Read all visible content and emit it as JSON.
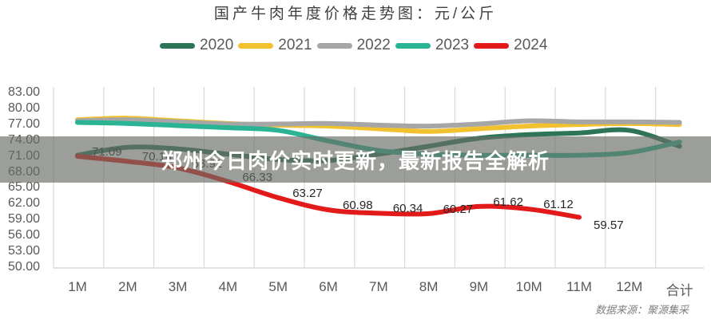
{
  "chart": {
    "title": "国产牛肉年度价格走势图：元/公斤",
    "source": "数据来源：聚源集采",
    "legend": [
      {
        "label": "2020",
        "color": "#2e7558"
      },
      {
        "label": "2021",
        "color": "#f2c12e"
      },
      {
        "label": "2022",
        "color": "#a6a6a6"
      },
      {
        "label": "2023",
        "color": "#2bb494"
      },
      {
        "label": "2024",
        "color": "#e31a1a"
      }
    ],
    "yticks": [
      "83.00",
      "80.00",
      "77.00",
      "74.00",
      "71.00",
      "68.00",
      "65.00",
      "62.00",
      "59.00",
      "56.00",
      "53.00",
      "50.00"
    ],
    "xticks": [
      "1M",
      "2M",
      "3M",
      "4M",
      "5M",
      "6M",
      "7M",
      "8M",
      "9M",
      "10M",
      "11M",
      "12M",
      "合计"
    ]
  },
  "banner": {
    "headline": "郑州今日肉价实时更新，最新报告全解析"
  },
  "chart_data": {
    "type": "line",
    "title": "国产牛肉年度价格走势图：元/公斤",
    "xlabel": "",
    "ylabel": "元/公斤",
    "ylim": [
      50,
      83
    ],
    "grid": {
      "vertical": true,
      "horizontal": false
    },
    "legend_position": "top",
    "categories": [
      "1M",
      "2M",
      "3M",
      "4M",
      "5M",
      "6M",
      "7M",
      "8M",
      "9M",
      "10M",
      "11M",
      "12M",
      "合计"
    ],
    "series": [
      {
        "name": "2020",
        "color": "#2e7558",
        "values": [
          71.3,
          72.8,
          72.5,
          71.5,
          70.5,
          70.3,
          71.5,
          73.0,
          74.5,
          75.2,
          75.5,
          76.0,
          73.0
        ]
      },
      {
        "name": "2021",
        "color": "#f2c12e",
        "values": [
          78.0,
          78.3,
          77.8,
          77.3,
          77.0,
          76.8,
          76.3,
          75.8,
          76.3,
          76.8,
          77.1,
          77.3,
          77.1
        ]
      },
      {
        "name": "2022",
        "color": "#a6a6a6",
        "values": [
          77.8,
          78.0,
          77.6,
          77.2,
          77.2,
          77.3,
          77.0,
          76.8,
          77.2,
          77.8,
          77.6,
          77.6,
          77.5
        ]
      },
      {
        "name": "2023",
        "color": "#2bb494",
        "values": [
          77.5,
          77.3,
          76.9,
          76.5,
          76.0,
          74.0,
          72.2,
          71.5,
          71.3,
          71.3,
          71.3,
          71.8,
          73.8
        ]
      },
      {
        "name": "2024",
        "color": "#e31a1a",
        "values": [
          71.09,
          70.14,
          68.91,
          66.33,
          63.27,
          60.98,
          60.34,
          60.27,
          61.62,
          61.12,
          59.57,
          null,
          null
        ],
        "data_labels": [
          "71.09",
          "70.14",
          "68.91",
          "66.33",
          "63.27",
          "60.98",
          "60.34",
          "60.27",
          "61.62",
          "61.12",
          "59.57"
        ]
      }
    ],
    "source": "数据来源：聚源集采"
  }
}
